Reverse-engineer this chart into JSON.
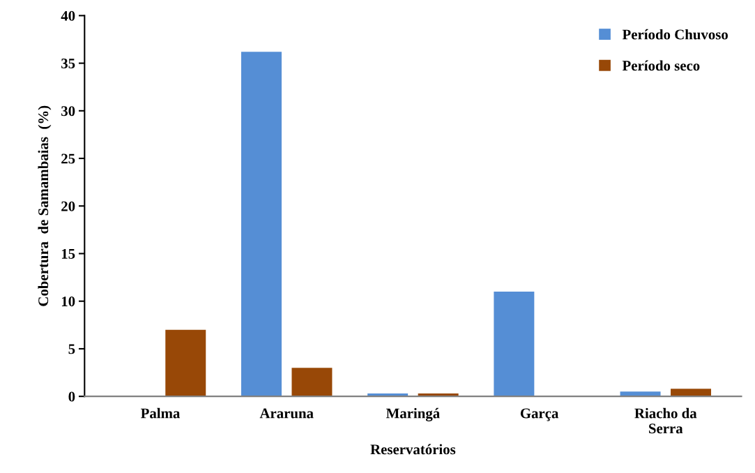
{
  "chart_data": {
    "type": "bar",
    "xlabel": "Reservatórios",
    "ylabel": "Cobertura  de Samambaias  (%)",
    "categories": [
      "Palma",
      "Araruna",
      "Maringá",
      "Garça",
      "Riacho da\nSerra"
    ],
    "series": [
      {
        "name": "Período Chuvoso",
        "color": "#558ed5",
        "values": [
          0,
          36.2,
          0.3,
          11,
          0.5
        ]
      },
      {
        "name": "Período seco",
        "color": "#984807",
        "values": [
          7,
          3,
          0.3,
          0,
          0.8
        ]
      }
    ],
    "ylim": [
      0,
      40
    ],
    "yticks": [
      0,
      5,
      10,
      15,
      20,
      25,
      30,
      35,
      40
    ],
    "grid": false,
    "legend": "top right"
  }
}
